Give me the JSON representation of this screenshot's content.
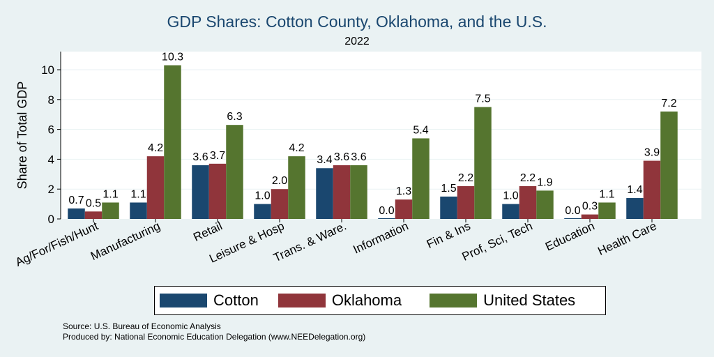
{
  "chart_data": {
    "type": "bar",
    "title": "GDP Shares: Cotton County, Oklahoma, and the U.S.",
    "subtitle": "2022",
    "ylabel": "Share of Total GDP",
    "xlabel": "",
    "ylim": [
      0,
      11
    ],
    "yticks": [
      0,
      2,
      4,
      6,
      8,
      10
    ],
    "grid": true,
    "legend_position": "bottom",
    "categories": [
      "Ag/For/Fish/Hunt",
      "Manufacturing",
      "Retail",
      "Leisure & Hosp",
      "Trans. & Ware.",
      "Information",
      "Fin & Ins",
      "Prof, Sci, Tech",
      "Education",
      "Health Care"
    ],
    "series": [
      {
        "name": "Cotton",
        "color": "#1a476f",
        "values": [
          0.7,
          1.1,
          3.6,
          1.0,
          3.4,
          0.0,
          1.5,
          1.0,
          0.0,
          1.4
        ],
        "labels": [
          "0.7",
          "1.1",
          "3.6",
          "1.0",
          "3.4",
          "0.0",
          "1.5",
          "1.0",
          "0.0",
          "1.4"
        ]
      },
      {
        "name": "Oklahoma",
        "color": "#90353b",
        "values": [
          0.5,
          4.2,
          3.7,
          2.0,
          3.6,
          1.3,
          2.2,
          2.2,
          0.3,
          3.9
        ],
        "labels": [
          "0.5",
          "4.2",
          "3.7",
          "2.0",
          "3.6",
          "1.3",
          "2.2",
          "2.2",
          "0.3",
          "3.9"
        ]
      },
      {
        "name": "United States",
        "color": "#55752f",
        "values": [
          1.1,
          10.3,
          6.3,
          4.2,
          3.6,
          5.4,
          7.5,
          1.9,
          1.1,
          7.2
        ],
        "labels": [
          "1.1",
          "10.3",
          "6.3",
          "4.2",
          "3.6",
          "5.4",
          "7.5",
          "1.9",
          "1.1",
          "7.2"
        ]
      }
    ]
  },
  "footer": {
    "source": "Source: U.S. Bureau of Economic Analysis",
    "produced_by": "Produced by: National Economic Education Delegation (www.NEEDelegation.org)"
  }
}
